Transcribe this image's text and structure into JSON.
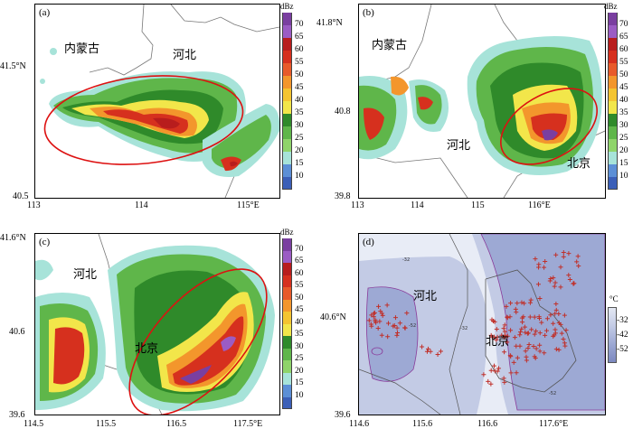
{
  "colorbar": {
    "unit": "dBz",
    "labels": [
      "70",
      "65",
      "60",
      "55",
      "50",
      "45",
      "40",
      "35",
      "30",
      "25",
      "20",
      "15",
      "10"
    ],
    "colors": [
      "#7a3fa0",
      "#9b5cc4",
      "#b81d1d",
      "#d6301e",
      "#e85a2a",
      "#f3962c",
      "#f4c431",
      "#f2e64a",
      "#2f8a2a",
      "#5fb64a",
      "#8fd46a",
      "#a7e3d9",
      "#5c8fd6",
      "#3b5fb8"
    ]
  },
  "panels": [
    {
      "label": "(a)",
      "regions": [
        "内蒙古",
        "河北"
      ],
      "yticks": [
        "41.5°N",
        "40.5"
      ],
      "xticks": [
        "113",
        "114",
        "115°E"
      ]
    },
    {
      "label": "(b)",
      "regions": [
        "内蒙古",
        "河北",
        "北京"
      ],
      "yticks": [
        "41.8°N",
        "40.8",
        "39.8"
      ],
      "xticks": [
        "113",
        "114",
        "115",
        "116°E"
      ]
    },
    {
      "label": "(c)",
      "regions": [
        "河北",
        "北京"
      ],
      "yticks": [
        "41.6°N",
        "40.6",
        "39.6"
      ],
      "xticks": [
        "114.5",
        "115.5",
        "116.5",
        "117.5°E"
      ]
    },
    {
      "label": "(d)",
      "regions": [
        "河北",
        "北京"
      ],
      "yticks": [
        "40.6°N",
        "39.6"
      ],
      "xticks": [
        "114.6",
        "115.6",
        "116.6",
        "117.6°E"
      ],
      "contour_labels": [
        "-32",
        "-52",
        "-52"
      ]
    }
  ],
  "temp_colorbar": {
    "unit": "°C",
    "labels": [
      "-32",
      "-42",
      "-52"
    ],
    "colors": [
      "#e4e8f3",
      "#c3cbe5",
      "#9da9d4",
      "#7c88c0"
    ]
  }
}
